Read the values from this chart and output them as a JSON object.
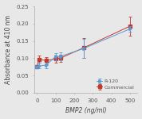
{
  "x": [
    0,
    10,
    50,
    100,
    125,
    250,
    500
  ],
  "r120_y": [
    0.075,
    0.078,
    0.08,
    0.105,
    0.105,
    0.128,
    0.185
  ],
  "commercial_y": [
    0.075,
    0.097,
    0.093,
    0.098,
    0.1,
    0.13,
    0.193
  ],
  "r120_yerr": [
    0.004,
    0.008,
    0.008,
    0.01,
    0.012,
    0.028,
    0.008
  ],
  "commercial_yerr": [
    0.004,
    0.01,
    0.01,
    0.01,
    0.01,
    0.028,
    0.028
  ],
  "r120_color": "#5b9bd5",
  "commercial_color": "#c0392b",
  "xlabel": "BMP2 (ng/ml)",
  "ylabel": "Absorbance at 410 nm",
  "xlim": [
    -15,
    540
  ],
  "ylim": [
    0.0,
    0.25
  ],
  "yticks": [
    0.0,
    0.05,
    0.1,
    0.15,
    0.2,
    0.25
  ],
  "xticks": [
    0,
    100,
    200,
    300,
    400,
    500
  ],
  "legend_r120": "R-120",
  "legend_commercial": "Commercial",
  "axis_fontsize": 5.5,
  "tick_fontsize": 5,
  "legend_fontsize": 4.5,
  "bg_color": "#e8e8e8"
}
